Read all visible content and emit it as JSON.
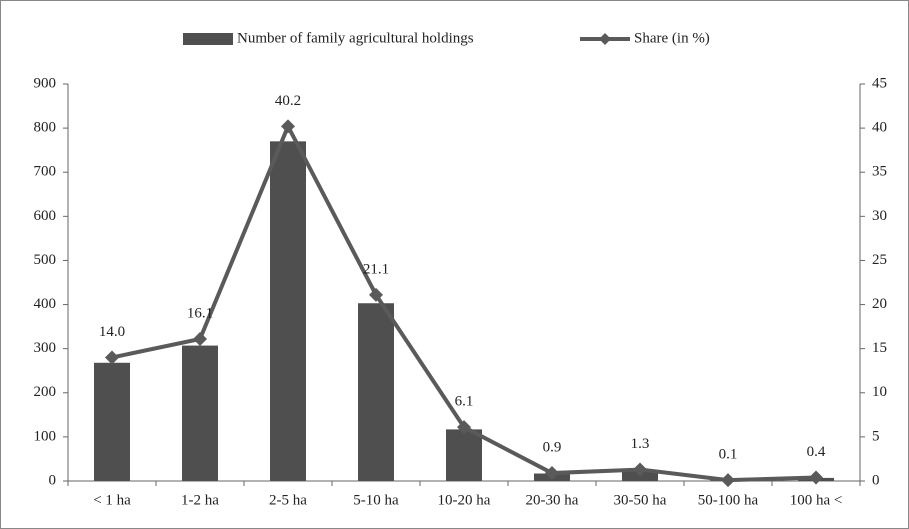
{
  "chart_data": {
    "type": "bar",
    "categories": [
      "< 1 ha",
      "1-2 ha",
      "2-5 ha",
      "5-10 ha",
      "10-20 ha",
      "20-30 ha",
      "30-50 ha",
      "50-100 ha",
      "100 ha <"
    ],
    "series": [
      {
        "name": "Number of family agricultural holdings",
        "type": "bar",
        "color": "#4f4f4f",
        "values": [
          268,
          307,
          770,
          403,
          117,
          17,
          25,
          2,
          7
        ]
      },
      {
        "name": "Share (in %)",
        "type": "line",
        "axis": "y2",
        "color": "#5a5a5a",
        "values": [
          14.0,
          16.1,
          40.2,
          21.1,
          6.1,
          0.9,
          1.3,
          0.1,
          0.4
        ],
        "value_labels": [
          "14.0",
          "16.1",
          "40.2",
          "21.1",
          "6.1",
          "0.9",
          "1.3",
          "0.1",
          "0.4"
        ]
      }
    ],
    "ylim": [
      0,
      900
    ],
    "yticks": [
      0,
      100,
      200,
      300,
      400,
      500,
      600,
      700,
      800,
      900
    ],
    "y2lim": [
      0,
      45
    ],
    "y2ticks": [
      0,
      5,
      10,
      15,
      20,
      25,
      30,
      35,
      40,
      45
    ],
    "legend": "top"
  }
}
